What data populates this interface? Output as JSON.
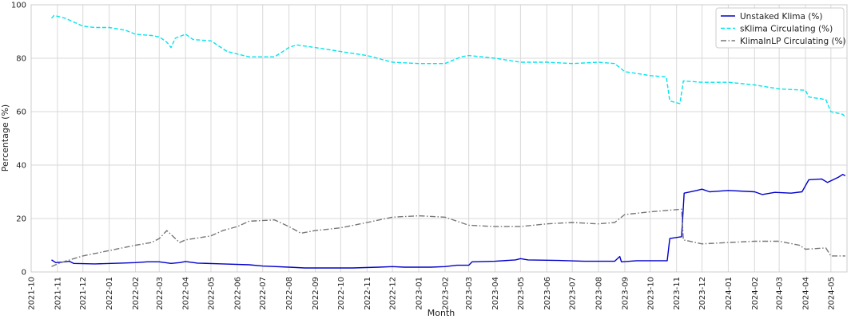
{
  "chart_data": {
    "type": "line",
    "xlabel": "Month",
    "ylabel": "Percentage (%)",
    "xlim": [
      "2021-10-01",
      "2024-05-20"
    ],
    "ylim": [
      0,
      100
    ],
    "yticks": [
      0,
      20,
      40,
      60,
      80,
      100
    ],
    "xticks": [
      "2021-10",
      "2021-11",
      "2021-12",
      "2022-01",
      "2022-02",
      "2022-03",
      "2022-04",
      "2022-05",
      "2022-06",
      "2022-07",
      "2022-08",
      "2022-09",
      "2022-10",
      "2022-11",
      "2022-12",
      "2023-01",
      "2023-02",
      "2023-03",
      "2023-04",
      "2023-05",
      "2023-06",
      "2023-07",
      "2023-08",
      "2023-09",
      "2023-10",
      "2023-11",
      "2023-12",
      "2024-01",
      "2024-02",
      "2024-03",
      "2024-04",
      "2024-05"
    ],
    "grid": true,
    "legend_position": "top-right",
    "series": [
      {
        "name": "Unstaked Klima (%)",
        "color": "#0000cc",
        "style": "solid",
        "points": [
          [
            "2021-10-25",
            4.5
          ],
          [
            "2021-10-30",
            3.5
          ],
          [
            "2021-11-10",
            3.8
          ],
          [
            "2021-11-15",
            4.0
          ],
          [
            "2021-11-20",
            3.2
          ],
          [
            "2021-12-15",
            3.0
          ],
          [
            "2022-01-15",
            3.3
          ],
          [
            "2022-02-01",
            3.5
          ],
          [
            "2022-02-15",
            3.8
          ],
          [
            "2022-03-01",
            3.8
          ],
          [
            "2022-03-15",
            3.2
          ],
          [
            "2022-03-25",
            3.5
          ],
          [
            "2022-04-01",
            3.9
          ],
          [
            "2022-04-15",
            3.3
          ],
          [
            "2022-05-15",
            3.0
          ],
          [
            "2022-06-15",
            2.7
          ],
          [
            "2022-07-01",
            2.2
          ],
          [
            "2022-08-01",
            1.8
          ],
          [
            "2022-08-20",
            1.5
          ],
          [
            "2022-09-15",
            1.5
          ],
          [
            "2022-10-15",
            1.5
          ],
          [
            "2022-11-15",
            1.8
          ],
          [
            "2022-12-01",
            2.0
          ],
          [
            "2022-12-15",
            1.8
          ],
          [
            "2023-01-15",
            1.8
          ],
          [
            "2023-02-01",
            2.0
          ],
          [
            "2023-02-15",
            2.5
          ],
          [
            "2023-03-01",
            2.5
          ],
          [
            "2023-03-05",
            3.8
          ],
          [
            "2023-04-01",
            4.0
          ],
          [
            "2023-04-25",
            4.5
          ],
          [
            "2023-05-01",
            5.0
          ],
          [
            "2023-05-10",
            4.5
          ],
          [
            "2023-06-15",
            4.3
          ],
          [
            "2023-07-15",
            4.0
          ],
          [
            "2023-08-20",
            4.0
          ],
          [
            "2023-08-26",
            5.8
          ],
          [
            "2023-08-28",
            3.8
          ],
          [
            "2023-09-15",
            4.2
          ],
          [
            "2023-10-21",
            4.2
          ],
          [
            "2023-10-24",
            12.5
          ],
          [
            "2023-11-07",
            13.2
          ],
          [
            "2023-11-10",
            29.5
          ],
          [
            "2023-11-25",
            30.5
          ],
          [
            "2023-12-01",
            31.0
          ],
          [
            "2023-12-10",
            30.0
          ],
          [
            "2024-01-01",
            30.5
          ],
          [
            "2024-02-01",
            30.0
          ],
          [
            "2024-02-10",
            29.0
          ],
          [
            "2024-02-25",
            29.8
          ],
          [
            "2024-03-15",
            29.5
          ],
          [
            "2024-03-28",
            30.0
          ],
          [
            "2024-04-05",
            34.5
          ],
          [
            "2024-04-20",
            34.8
          ],
          [
            "2024-04-27",
            33.5
          ],
          [
            "2024-05-10",
            35.5
          ],
          [
            "2024-05-15",
            36.5
          ],
          [
            "2024-05-18",
            36.0
          ]
        ]
      },
      {
        "name": "sKlima Circulating (%)",
        "color": "#00e5ee",
        "style": "dashed",
        "points": [
          [
            "2021-10-25",
            95.0
          ],
          [
            "2021-10-28",
            96.0
          ],
          [
            "2021-11-10",
            95.0
          ],
          [
            "2021-12-01",
            92.0
          ],
          [
            "2021-12-15",
            91.5
          ],
          [
            "2022-01-01",
            91.5
          ],
          [
            "2022-01-20",
            90.5
          ],
          [
            "2022-02-01",
            89.0
          ],
          [
            "2022-02-20",
            88.5
          ],
          [
            "2022-03-01",
            88.0
          ],
          [
            "2022-03-10",
            86.0
          ],
          [
            "2022-03-15",
            84.0
          ],
          [
            "2022-03-20",
            87.5
          ],
          [
            "2022-04-01",
            89.0
          ],
          [
            "2022-04-10",
            87.0
          ],
          [
            "2022-05-01",
            86.5
          ],
          [
            "2022-05-20",
            82.5
          ],
          [
            "2022-06-15",
            80.5
          ],
          [
            "2022-07-15",
            80.5
          ],
          [
            "2022-08-01",
            84.0
          ],
          [
            "2022-08-10",
            85.0
          ],
          [
            "2022-09-01",
            84.0
          ],
          [
            "2022-10-01",
            82.5
          ],
          [
            "2022-11-01",
            81.0
          ],
          [
            "2022-12-01",
            78.5
          ],
          [
            "2023-01-01",
            78.0
          ],
          [
            "2023-02-01",
            78.0
          ],
          [
            "2023-02-20",
            80.5
          ],
          [
            "2023-03-01",
            81.0
          ],
          [
            "2023-04-01",
            80.0
          ],
          [
            "2023-05-01",
            78.5
          ],
          [
            "2023-06-01",
            78.5
          ],
          [
            "2023-07-01",
            78.0
          ],
          [
            "2023-08-01",
            78.5
          ],
          [
            "2023-08-20",
            78.0
          ],
          [
            "2023-09-01",
            75.0
          ],
          [
            "2023-10-01",
            73.5
          ],
          [
            "2023-10-20",
            73.0
          ],
          [
            "2023-10-24",
            64.0
          ],
          [
            "2023-11-05",
            63.0
          ],
          [
            "2023-11-09",
            71.5
          ],
          [
            "2023-12-01",
            71.0
          ],
          [
            "2024-01-01",
            71.0
          ],
          [
            "2024-02-01",
            70.0
          ],
          [
            "2024-03-01",
            68.5
          ],
          [
            "2024-04-01",
            68.0
          ],
          [
            "2024-04-05",
            65.5
          ],
          [
            "2024-04-25",
            64.5
          ],
          [
            "2024-05-01",
            60.0
          ],
          [
            "2024-05-15",
            59.0
          ],
          [
            "2024-05-18",
            58.0
          ]
        ]
      },
      {
        "name": "KlimaInLP Circulating (%)",
        "color": "#777777",
        "style": "dashdot",
        "points": [
          [
            "2021-10-25",
            2.0
          ],
          [
            "2021-11-01",
            3.0
          ],
          [
            "2021-11-10",
            4.0
          ],
          [
            "2021-12-01",
            6.0
          ],
          [
            "2022-01-01",
            8.0
          ],
          [
            "2022-02-01",
            10.0
          ],
          [
            "2022-02-20",
            11.0
          ],
          [
            "2022-03-01",
            12.5
          ],
          [
            "2022-03-10",
            15.5
          ],
          [
            "2022-03-15",
            14.0
          ],
          [
            "2022-03-25",
            11.0
          ],
          [
            "2022-04-01",
            12.0
          ],
          [
            "2022-05-01",
            13.5
          ],
          [
            "2022-05-15",
            15.5
          ],
          [
            "2022-06-01",
            17.0
          ],
          [
            "2022-06-15",
            19.0
          ],
          [
            "2022-07-15",
            19.5
          ],
          [
            "2022-08-01",
            17.0
          ],
          [
            "2022-08-15",
            14.5
          ],
          [
            "2022-09-01",
            15.5
          ],
          [
            "2022-10-01",
            16.5
          ],
          [
            "2022-11-01",
            18.5
          ],
          [
            "2022-12-01",
            20.5
          ],
          [
            "2023-01-01",
            21.0
          ],
          [
            "2023-02-01",
            20.5
          ],
          [
            "2023-03-01",
            17.5
          ],
          [
            "2023-04-01",
            17.0
          ],
          [
            "2023-05-01",
            17.0
          ],
          [
            "2023-06-01",
            18.0
          ],
          [
            "2023-07-01",
            18.5
          ],
          [
            "2023-08-01",
            18.0
          ],
          [
            "2023-08-20",
            18.5
          ],
          [
            "2023-09-01",
            21.5
          ],
          [
            "2023-10-01",
            22.5
          ],
          [
            "2023-11-07",
            23.5
          ],
          [
            "2023-11-09",
            12.0
          ],
          [
            "2023-12-01",
            10.5
          ],
          [
            "2024-01-01",
            11.0
          ],
          [
            "2024-02-01",
            11.5
          ],
          [
            "2024-03-01",
            11.5
          ],
          [
            "2024-03-25",
            10.0
          ],
          [
            "2024-04-01",
            8.5
          ],
          [
            "2024-04-25",
            9.0
          ],
          [
            "2024-05-01",
            6.0
          ],
          [
            "2024-05-18",
            6.0
          ]
        ]
      }
    ]
  }
}
